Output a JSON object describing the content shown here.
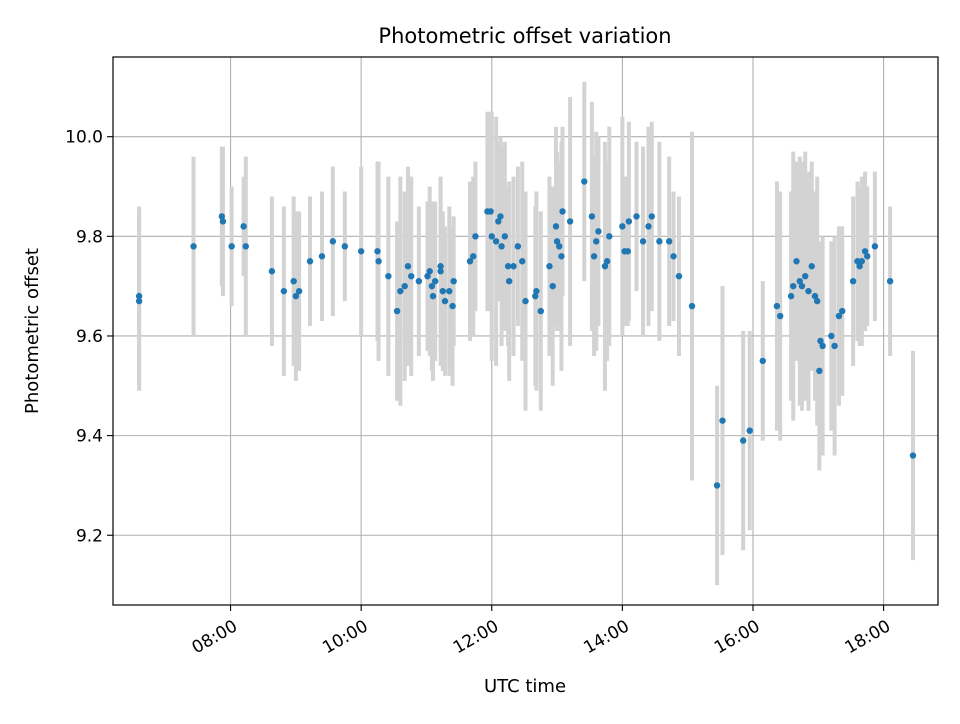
{
  "chart_data": {
    "type": "scatter",
    "title": "Photometric offset variation",
    "xlabel": "UTC time",
    "ylabel": "Photometric offset",
    "x_unit": "UTC time (HH:MM)",
    "xlim": [
      "06:12",
      "18:50"
    ],
    "ylim": [
      9.06,
      10.16
    ],
    "x_ticks": [
      "08:00",
      "10:00",
      "12:00",
      "14:00",
      "16:00",
      "18:00"
    ],
    "y_ticks": [
      "9.2",
      "9.4",
      "9.6",
      "9.8",
      "10.0"
    ],
    "grid": true,
    "point_color": "#1f77b4",
    "errorbar_color": "#d3d3d3",
    "series": [
      {
        "x": [
          "06:36",
          "06:36",
          "07:26",
          "07:52",
          "07:53",
          "08:01",
          "08:12",
          "08:14",
          "08:38",
          "08:49",
          "08:58",
          "09:00",
          "09:03",
          "09:13",
          "09:24",
          "09:34",
          "09:45",
          "10:00",
          "10:15",
          "10:16",
          "10:25",
          "10:33",
          "10:36",
          "10:40",
          "10:43",
          "10:46",
          "10:53",
          "11:01",
          "11:03",
          "11:05",
          "11:06",
          "11:08",
          "11:13",
          "11:13",
          "11:15",
          "11:17",
          "11:21",
          "11:24",
          "11:25",
          "11:40",
          "11:43",
          "11:45",
          "11:56",
          "11:59",
          "12:00",
          "12:04",
          "12:06",
          "12:08",
          "12:09",
          "12:12",
          "12:15",
          "12:16",
          "12:20",
          "12:24",
          "12:28",
          "12:31",
          "12:40",
          "12:41",
          "12:45",
          "12:53",
          "12:56",
          "12:59",
          "13:00",
          "13:02",
          "13:04",
          "13:05",
          "13:12",
          "13:25",
          "13:32",
          "13:34",
          "13:36",
          "13:38",
          "13:44",
          "13:46",
          "13:48",
          "14:00",
          "14:02",
          "14:05",
          "14:06",
          "14:13",
          "14:19",
          "14:24",
          "14:27",
          "14:34",
          "14:43",
          "14:47",
          "14:52",
          "15:04",
          "15:27",
          "15:32",
          "15:51",
          "15:57",
          "16:09",
          "16:22",
          "16:25",
          "16:35",
          "16:37",
          "16:40",
          "16:43",
          "16:45",
          "16:48",
          "16:51",
          "16:54",
          "16:57",
          "16:59",
          "17:01",
          "17:02",
          "17:04",
          "17:12",
          "17:15",
          "17:19",
          "17:22",
          "17:32",
          "17:36",
          "17:38",
          "17:40",
          "17:43",
          "17:45",
          "17:52",
          "18:06",
          "18:27"
        ],
        "y": [
          9.68,
          9.67,
          9.78,
          9.84,
          9.83,
          9.78,
          9.82,
          9.78,
          9.73,
          9.69,
          9.71,
          9.68,
          9.69,
          9.75,
          9.76,
          9.79,
          9.78,
          9.77,
          9.77,
          9.75,
          9.72,
          9.65,
          9.69,
          9.7,
          9.74,
          9.72,
          9.71,
          9.72,
          9.73,
          9.7,
          9.68,
          9.71,
          9.74,
          9.73,
          9.69,
          9.67,
          9.69,
          9.66,
          9.71,
          9.75,
          9.76,
          9.8,
          9.85,
          9.85,
          9.8,
          9.79,
          9.83,
          9.84,
          9.78,
          9.8,
          9.74,
          9.71,
          9.74,
          9.78,
          9.75,
          9.67,
          9.68,
          9.69,
          9.65,
          9.74,
          9.7,
          9.82,
          9.79,
          9.78,
          9.76,
          9.85,
          9.83,
          9.91,
          9.84,
          9.76,
          9.79,
          9.81,
          9.74,
          9.75,
          9.8,
          9.82,
          9.77,
          9.77,
          9.83,
          9.84,
          9.79,
          9.82,
          9.84,
          9.79,
          9.79,
          9.76,
          9.72,
          9.66,
          9.3,
          9.43,
          9.39,
          9.41,
          9.55,
          9.66,
          9.64,
          9.68,
          9.7,
          9.75,
          9.71,
          9.7,
          9.72,
          9.69,
          9.74,
          9.68,
          9.67,
          9.53,
          9.59,
          9.58,
          9.6,
          9.58,
          9.64,
          9.65,
          9.71,
          9.75,
          9.74,
          9.75,
          9.77,
          9.76,
          9.78,
          9.71,
          9.36
        ],
        "err": [
          0.18,
          0.18,
          0.18,
          0.14,
          0.15,
          0.12,
          0.1,
          0.18,
          0.15,
          0.17,
          0.17,
          0.17,
          0.16,
          0.13,
          0.13,
          0.15,
          0.11,
          0.17,
          0.18,
          0.2,
          0.2,
          0.18,
          0.23,
          0.19,
          0.2,
          0.2,
          0.15,
          0.15,
          0.17,
          0.17,
          0.17,
          0.16,
          0.17,
          0.19,
          0.16,
          0.15,
          0.17,
          0.16,
          0.13,
          0.16,
          0.16,
          0.15,
          0.2,
          0.2,
          0.25,
          0.25,
          0.16,
          0.16,
          0.2,
          0.19,
          0.16,
          0.2,
          0.18,
          0.16,
          0.2,
          0.22,
          0.18,
          0.2,
          0.2,
          0.18,
          0.2,
          0.2,
          0.18,
          0.17,
          0.23,
          0.17,
          0.25,
          0.2,
          0.23,
          0.2,
          0.22,
          0.19,
          0.25,
          0.2,
          0.22,
          0.22,
          0.15,
          0.15,
          0.2,
          0.15,
          0.19,
          0.2,
          0.19,
          0.2,
          0.17,
          0.13,
          0.16,
          0.35,
          0.2,
          0.27,
          0.22,
          0.2,
          0.16,
          0.25,
          0.25,
          0.21,
          0.27,
          0.2,
          0.25,
          0.25,
          0.25,
          0.24,
          0.21,
          0.21,
          0.25,
          0.2,
          0.2,
          0.22,
          0.19,
          0.22,
          0.18,
          0.17,
          0.17,
          0.16,
          0.16,
          0.17,
          0.16,
          0.14,
          0.15,
          0.15,
          0.21
        ]
      }
    ]
  }
}
